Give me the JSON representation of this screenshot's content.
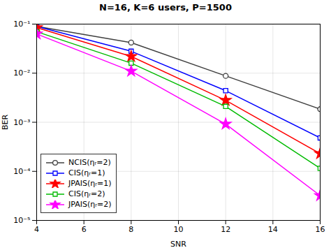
{
  "chart_data": {
    "type": "line",
    "title": "N=16, K=6 users, P=1500",
    "xlabel": "SNR",
    "ylabel": "BER",
    "x": [
      4,
      8,
      12,
      16
    ],
    "series": [
      {
        "name": "NCIS(ηᵣ=2)",
        "color": "#404040",
        "marker": "circle",
        "values": [
          0.09,
          0.042,
          0.0088,
          0.00185
        ]
      },
      {
        "name": "CIS(ηᵣ=1)",
        "color": "#0000ff",
        "marker": "square",
        "values": [
          0.09,
          0.028,
          0.0044,
          0.00048
        ]
      },
      {
        "name": "JPAIS(ηᵣ=1)",
        "color": "#ff0000",
        "marker": "star",
        "values": [
          0.085,
          0.022,
          0.0028,
          0.00023
        ]
      },
      {
        "name": "CIS(ηᵣ=2)",
        "color": "#00bb00",
        "marker": "square",
        "values": [
          0.07,
          0.016,
          0.0021,
          0.000115
        ]
      },
      {
        "name": "JPAIS(ηᵣ=2)",
        "color": "#ff00ff",
        "marker": "star",
        "values": [
          0.063,
          0.011,
          0.00092,
          3.2e-05
        ]
      }
    ],
    "xlim": [
      4,
      16
    ],
    "ylim": [
      1e-05,
      0.1
    ],
    "xticks": [
      4,
      6,
      8,
      10,
      12,
      14,
      16
    ],
    "yticks": [
      {
        "value": 1e-05,
        "label": "10⁻⁵"
      },
      {
        "value": 0.0001,
        "label": "10⁻⁴"
      },
      {
        "value": 0.001,
        "label": "10⁻³"
      },
      {
        "value": 0.01,
        "label": "10⁻²"
      },
      {
        "value": 0.1,
        "label": "10⁻¹"
      }
    ],
    "log": "y",
    "grid": true,
    "legend": "lower left"
  }
}
